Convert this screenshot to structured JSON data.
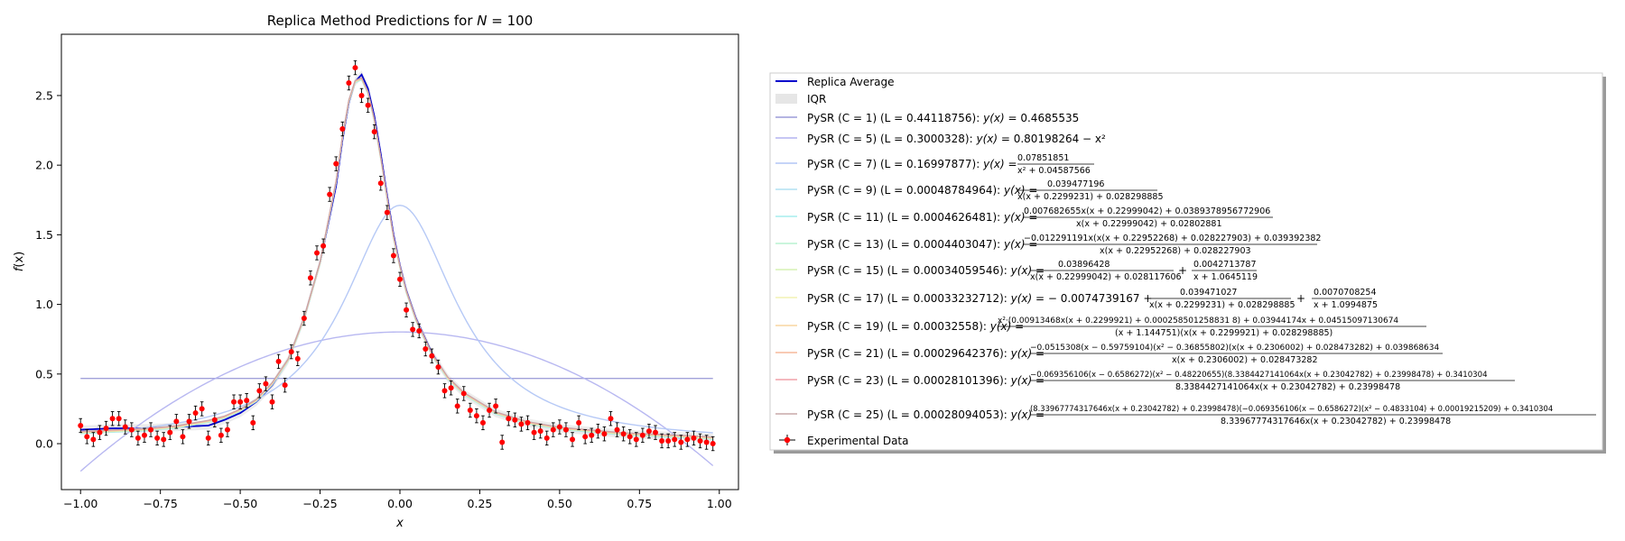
{
  "chart_data": {
    "type": "line",
    "title": "Replica Method Predictions for N = 100",
    "title_main": "Replica Method Predictions for ",
    "title_var": "N",
    "title_eq": " = 100",
    "xlabel": "x",
    "ylabel": "f(x)",
    "ylabel_f": "f",
    "ylabel_x": "(x)",
    "xlim": [
      -1.06,
      1.06
    ],
    "ylim": [
      -0.33,
      2.94
    ],
    "x_ticks": [
      -1.0,
      -0.75,
      -0.5,
      -0.25,
      0.0,
      0.25,
      0.5,
      0.75,
      1.0
    ],
    "x_tick_labels": [
      "−1.00",
      "−0.75",
      "−0.50",
      "−0.25",
      "0.00",
      "0.25",
      "0.50",
      "0.75",
      "1.00"
    ],
    "y_ticks": [
      0.0,
      0.5,
      1.0,
      1.5,
      2.0,
      2.5
    ],
    "y_tick_labels": [
      "0.0",
      "0.5",
      "1.0",
      "1.5",
      "2.0",
      "2.5"
    ],
    "grid": false,
    "legend_position": "right of plot",
    "replica_average": {
      "name": "Replica Average",
      "color": "#0000cc",
      "x": [
        -1.0,
        -0.9,
        -0.8,
        -0.7,
        -0.6,
        -0.55,
        -0.5,
        -0.45,
        -0.4,
        -0.35,
        -0.3,
        -0.25,
        -0.2,
        -0.18,
        -0.16,
        -0.14,
        -0.12,
        -0.1,
        -0.08,
        -0.06,
        -0.04,
        -0.02,
        0.0,
        0.02,
        0.05,
        0.1,
        0.15,
        0.2,
        0.3,
        0.4,
        0.5,
        0.6,
        0.7,
        0.8,
        0.9,
        0.98
      ],
      "y": [
        0.1,
        0.11,
        0.11,
        0.12,
        0.13,
        0.17,
        0.22,
        0.3,
        0.42,
        0.6,
        0.9,
        1.3,
        1.85,
        2.18,
        2.45,
        2.6,
        2.65,
        2.55,
        2.35,
        2.08,
        1.78,
        1.5,
        1.28,
        1.1,
        0.9,
        0.65,
        0.47,
        0.36,
        0.22,
        0.15,
        0.11,
        0.09,
        0.07,
        0.06,
        0.05,
        0.04
      ]
    },
    "iqr": {
      "name": "IQR",
      "color": "#e6e6e6"
    },
    "experimental": {
      "name": "Experimental Data",
      "color": "#ff0000",
      "x": [
        -1.0,
        -0.98,
        -0.96,
        -0.94,
        -0.92,
        -0.9,
        -0.88,
        -0.86,
        -0.84,
        -0.82,
        -0.8,
        -0.78,
        -0.76,
        -0.74,
        -0.72,
        -0.7,
        -0.68,
        -0.66,
        -0.64,
        -0.62,
        -0.6,
        -0.58,
        -0.56,
        -0.54,
        -0.52,
        -0.5,
        -0.48,
        -0.46,
        -0.44,
        -0.42,
        -0.4,
        -0.38,
        -0.36,
        -0.34,
        -0.32,
        -0.3,
        -0.28,
        -0.26,
        -0.24,
        -0.22,
        -0.2,
        -0.18,
        -0.16,
        -0.14,
        -0.12,
        -0.1,
        -0.08,
        -0.06,
        -0.04,
        -0.02,
        0.0,
        0.02,
        0.04,
        0.06,
        0.08,
        0.1,
        0.12,
        0.14,
        0.16,
        0.18,
        0.2,
        0.22,
        0.24,
        0.26,
        0.28,
        0.3,
        0.32,
        0.34,
        0.36,
        0.38,
        0.4,
        0.42,
        0.44,
        0.46,
        0.48,
        0.5,
        0.52,
        0.54,
        0.56,
        0.58,
        0.6,
        0.62,
        0.64,
        0.66,
        0.68,
        0.7,
        0.72,
        0.74,
        0.76,
        0.78,
        0.8,
        0.82,
        0.84,
        0.86,
        0.88,
        0.9,
        0.92,
        0.94,
        0.96,
        0.98
      ],
      "y": [
        0.13,
        0.05,
        0.03,
        0.08,
        0.11,
        0.18,
        0.18,
        0.12,
        0.1,
        0.04,
        0.06,
        0.1,
        0.04,
        0.03,
        0.08,
        0.16,
        0.05,
        0.16,
        0.22,
        0.25,
        0.04,
        0.17,
        0.06,
        0.1,
        0.3,
        0.3,
        0.31,
        0.15,
        0.38,
        0.43,
        0.3,
        0.59,
        0.42,
        0.66,
        0.61,
        0.9,
        1.19,
        1.37,
        1.42,
        1.79,
        2.01,
        2.26,
        2.59,
        2.7,
        2.5,
        2.43,
        2.24,
        1.87,
        1.66,
        1.35,
        1.18,
        0.96,
        0.82,
        0.81,
        0.68,
        0.63,
        0.55,
        0.38,
        0.4,
        0.27,
        0.36,
        0.24,
        0.2,
        0.15,
        0.24,
        0.27,
        0.01,
        0.18,
        0.17,
        0.14,
        0.15,
        0.08,
        0.09,
        0.04,
        0.1,
        0.12,
        0.1,
        0.03,
        0.15,
        0.05,
        0.06,
        0.09,
        0.07,
        0.18,
        0.1,
        0.07,
        0.05,
        0.03,
        0.06,
        0.09,
        0.08,
        0.02,
        0.02,
        0.03,
        0.01,
        0.03,
        0.04,
        0.02,
        0.01,
        0.0
      ],
      "error": 0.05
    },
    "pysr_series": [
      {
        "id": "c1",
        "name": "PySR (C = 1) (L = 0.44118756)",
        "color": "#9c9cd8",
        "expr": "const"
      },
      {
        "id": "c5",
        "name": "PySR (C = 5) (L = 0.3000328)",
        "color": "#b4b4f0",
        "expr": "quad"
      },
      {
        "id": "c7",
        "name": "PySR (C = 7) (L = 0.16997877)",
        "color": "#b2c6f6",
        "expr": "rat7"
      },
      {
        "id": "c9",
        "name": "PySR (C = 9) (L = 0.00048784964)",
        "color": "#b2e0f2",
        "expr": "peak"
      },
      {
        "id": "c11",
        "name": "PySR (C = 11) (L = 0.0004626481)",
        "color": "#a6eeee",
        "expr": "peak"
      },
      {
        "id": "c13",
        "name": "PySR (C = 13) (L = 0.0004403047)",
        "color": "#b8f2d0",
        "expr": "peak"
      },
      {
        "id": "c15",
        "name": "PySR (C = 15) (L = 0.00034059546)",
        "color": "#d6f2b4",
        "expr": "peak"
      },
      {
        "id": "c17",
        "name": "PySR (C = 17) (L = 0.00033232712)",
        "color": "#f2f2b4",
        "expr": "peak"
      },
      {
        "id": "c19",
        "name": "PySR (C = 19) (L = 0.00032558)",
        "color": "#f8d6a0",
        "expr": "peak"
      },
      {
        "id": "c21",
        "name": "PySR (C = 21) (L = 0.00029642376)",
        "color": "#f6b89c",
        "expr": "peak"
      },
      {
        "id": "c23",
        "name": "PySR (C = 23) (L = 0.00028101396)",
        "color": "#f0a0a8",
        "expr": "peak"
      },
      {
        "id": "c25",
        "name": "PySR (C = 25) (L = 0.00028094053)",
        "color": "#c8a8a8",
        "expr": "peak"
      }
    ],
    "peak_curve": {
      "x": [
        -1.0,
        -0.9,
        -0.8,
        -0.7,
        -0.6,
        -0.55,
        -0.5,
        -0.45,
        -0.4,
        -0.35,
        -0.3,
        -0.25,
        -0.2,
        -0.18,
        -0.16,
        -0.14,
        -0.12,
        -0.1,
        -0.08,
        -0.06,
        -0.04,
        -0.02,
        0.0,
        0.02,
        0.05,
        0.1,
        0.15,
        0.2,
        0.3,
        0.4,
        0.5,
        0.6,
        0.7,
        0.8,
        0.9,
        0.98
      ],
      "y": [
        0.08,
        0.09,
        0.1,
        0.12,
        0.16,
        0.19,
        0.24,
        0.31,
        0.43,
        0.6,
        0.9,
        1.3,
        1.88,
        2.2,
        2.46,
        2.6,
        2.62,
        2.52,
        2.32,
        2.05,
        1.76,
        1.48,
        1.27,
        1.09,
        0.89,
        0.64,
        0.47,
        0.36,
        0.22,
        0.15,
        0.11,
        0.09,
        0.07,
        0.06,
        0.05,
        0.04
      ]
    },
    "legend_equations": {
      "prefix": "y(x) = ",
      "c1": "0.4685535",
      "c5": "0.80198264 − x²",
      "c7_num": "0.07851851",
      "c7_den": "x² + 0.04587566",
      "c9_num": "0.039477196",
      "c9_den": "x(x + 0.2299231) + 0.028298885",
      "c11_num": "0.007682655x(x + 0.22999042) + 0.0389378956772906",
      "c11_den": "x(x + 0.22999042) + 0.02802881",
      "c13_num": "−0.012291191x(x(x + 0.22952268) + 0.028227903) + 0.039392382",
      "c13_den": "x(x + 0.22952268) + 0.028227903",
      "c15_num_a": "0.03896428",
      "c15_den_a": "x(x + 0.22999042) + 0.028117606",
      "c15_mid": "+",
      "c15_num_b": "0.0042713787",
      "c15_den_b": "x + 1.0645119",
      "c17_lead": "− 0.0074739167 +",
      "c17_num_a": "0.039471027",
      "c17_den_a": "x(x + 0.2299231) + 0.028298885",
      "c17_mid": "+",
      "c17_num_b": "0.0070708254",
      "c17_den_b": "x + 1.0994875",
      "c19_num": "x²·(0.00913468x(x + 0.2299921) + 0.000258501258831 8) + 0.03944174x + 0.04515097130674",
      "c19_den": "(x + 1.144751)(x(x + 0.2299921) + 0.028298885)",
      "c21_num": "−0.0515308(x − 0.59759104)(x² − 0.36855802)(x(x + 0.2306002) + 0.028473282) + 0.039868634",
      "c21_den": "x(x + 0.2306002) + 0.028473282",
      "c23_num": "−0.069356106(x − 0.6586272)(x² − 0.48220655)(8.3384427141064x(x + 0.23042782) + 0.23998478) + 0.3410304",
      "c23_den": "8.3384427141064x(x + 0.23042782) + 0.23998478",
      "c25_num": "(8.33967774317646x(x + 0.23042782) + 0.23998478)(−0.069356106(x − 0.6586272)(x² − 0.4833104) + 0.00019215209) + 0.3410304",
      "c25_den": "8.33967774317646x(x + 0.23042782) + 0.23998478"
    }
  }
}
